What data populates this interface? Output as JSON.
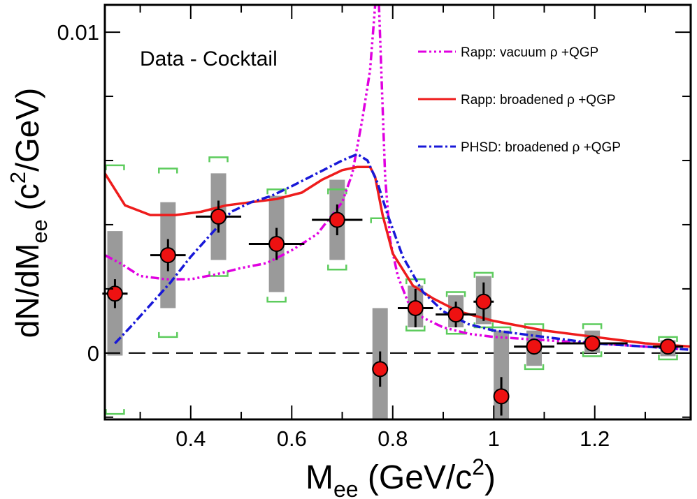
{
  "chart_data": {
    "type": "scatter",
    "title": "",
    "annotation": "Data - Cocktail",
    "xlabel": {
      "main": "M",
      "sub": "ee",
      "unit_open": " (GeV/c",
      "unit_sup": "2",
      "unit_close": ")"
    },
    "ylabel": {
      "main": "dN/dM",
      "sub": "ee",
      "unit_open": " (c",
      "unit_sup": "2",
      "unit_close": "/GeV)"
    },
    "xlim": [
      0.23,
      1.39
    ],
    "ylim": [
      -0.00207,
      0.01085
    ],
    "x_ticks": [
      {
        "value": 0.4,
        "label": "0.4"
      },
      {
        "value": 0.6,
        "label": "0.6"
      },
      {
        "value": 0.8,
        "label": "0.8"
      },
      {
        "value": 1.0,
        "label": "1"
      },
      {
        "value": 1.2,
        "label": "1.2"
      }
    ],
    "y_ticks": [
      {
        "value": 0,
        "label": "0"
      },
      {
        "value": 0.01,
        "label": "0.01"
      }
    ],
    "zero_line": true,
    "legend_position": "top-right",
    "colors": {
      "vacuum": "#e000e0",
      "broadened": "#ee1c1c",
      "phsd": "#1818d8",
      "marker": "#ee1111",
      "sys_box": "#9a9a9a",
      "bracket": "#5dcc5d"
    },
    "legend": [
      {
        "label": "Rapp: vacuum ρ +QGP",
        "series": "vacuum"
      },
      {
        "label": "Rapp: broadened ρ +QGP",
        "series": "broadened"
      },
      {
        "label": "PHSD: broadened ρ +QGP",
        "series": "phsd"
      }
    ],
    "series": [
      {
        "name": "Data",
        "points": [
          {
            "x": 0.25,
            "y": 0.00185,
            "ex": 0.025,
            "ey": 0.00045,
            "sys_lo": -8e-05,
            "sys_hi": 0.0038,
            "br_lo": -0.0019,
            "br_hi": 0.00585
          },
          {
            "x": 0.355,
            "y": 0.00305,
            "ex": 0.035,
            "ey": 0.0005,
            "sys_lo": 0.0014,
            "sys_hi": 0.0047,
            "br_lo": 0.0005,
            "br_hi": 0.00575
          },
          {
            "x": 0.455,
            "y": 0.00425,
            "ex": 0.045,
            "ey": 0.0005,
            "sys_lo": 0.0029,
            "sys_hi": 0.0056,
            "br_lo": 0.0024,
            "br_hi": 0.0061
          },
          {
            "x": 0.57,
            "y": 0.0034,
            "ex": 0.055,
            "ey": 0.0005,
            "sys_lo": 0.0019,
            "sys_hi": 0.0049,
            "br_lo": 0.0016,
            "br_hi": 0.0051
          },
          {
            "x": 0.69,
            "y": 0.00415,
            "ex": 0.05,
            "ey": 0.00048,
            "sys_lo": 0.0029,
            "sys_hi": 0.0054,
            "br_lo": 0.0026,
            "br_hi": 0.0051
          },
          {
            "x": 0.775,
            "y": -0.0005,
            "ex": 0.015,
            "ey": 0.00055,
            "sys_lo": -0.0021,
            "sys_hi": 0.0014,
            "br_lo": -0.0023,
            "br_hi": 0.0042
          },
          {
            "x": 0.845,
            "y": 0.0014,
            "ex": 0.035,
            "ey": 0.0006,
            "sys_lo": 0.0008,
            "sys_hi": 0.0021,
            "br_lo": 0.0007,
            "br_hi": 0.0023
          },
          {
            "x": 0.925,
            "y": 0.0012,
            "ex": 0.04,
            "ey": 0.0004,
            "sys_lo": 0.0008,
            "sys_hi": 0.0018,
            "br_lo": 0.0006,
            "br_hi": 0.0019
          },
          {
            "x": 0.98,
            "y": 0.0016,
            "ex": 0.02,
            "ey": 0.0006,
            "sys_lo": 0.0009,
            "sys_hi": 0.0024,
            "br_lo": 0.0008,
            "br_hi": 0.0025
          },
          {
            "x": 1.015,
            "y": -0.00135,
            "ex": 0.015,
            "ey": 0.0006,
            "sys_lo": -0.0021,
            "sys_hi": 0.0007,
            "br_lo": -0.0023,
            "br_hi": 0.0008
          },
          {
            "x": 1.08,
            "y": 0.0002,
            "ex": 0.04,
            "ey": 0.00025,
            "sys_lo": -0.0004,
            "sys_hi": 0.0007,
            "br_lo": -0.0005,
            "br_hi": 0.0009
          },
          {
            "x": 1.195,
            "y": 0.0003,
            "ex": 0.07,
            "ey": 0.00025,
            "sys_lo": 0.0,
            "sys_hi": 0.0007,
            "br_lo": -0.0001,
            "br_hi": 0.0009
          },
          {
            "x": 1.345,
            "y": 0.0002,
            "ex": 0.03,
            "ey": 0.0002,
            "sys_lo": -0.0001,
            "sys_hi": 0.0004,
            "br_lo": -0.0002,
            "br_hi": 0.0005
          }
        ]
      },
      {
        "name": "vacuum",
        "x": [
          0.23,
          0.26,
          0.3,
          0.35,
          0.4,
          0.45,
          0.5,
          0.55,
          0.6,
          0.65,
          0.7,
          0.72,
          0.74,
          0.755,
          0.765,
          0.772,
          0.778,
          0.785,
          0.795,
          0.81,
          0.83,
          0.86,
          0.9,
          0.95,
          1.0,
          1.1,
          1.2,
          1.3,
          1.39
        ],
        "y": [
          0.00305,
          0.0028,
          0.0024,
          0.0023,
          0.0023,
          0.00245,
          0.00265,
          0.0028,
          0.0032,
          0.0037,
          0.0047,
          0.0056,
          0.0073,
          0.0088,
          0.0108,
          0.0112,
          0.0085,
          0.0055,
          0.0035,
          0.0024,
          0.0016,
          0.0011,
          0.0008,
          0.0006,
          0.0005,
          0.0004,
          0.0003,
          0.0002,
          0.0001
        ]
      },
      {
        "name": "broadened",
        "x": [
          0.23,
          0.27,
          0.32,
          0.37,
          0.42,
          0.47,
          0.52,
          0.57,
          0.62,
          0.66,
          0.7,
          0.73,
          0.755,
          0.765,
          0.78,
          0.8,
          0.84,
          0.88,
          0.93,
          1.0,
          1.1,
          1.2,
          1.3,
          1.39
        ],
        "y": [
          0.0056,
          0.0046,
          0.0043,
          0.0043,
          0.0044,
          0.0046,
          0.0047,
          0.0048,
          0.005,
          0.0054,
          0.0057,
          0.0058,
          0.0058,
          0.0055,
          0.0043,
          0.0031,
          0.0021,
          0.0017,
          0.0013,
          0.001,
          0.0007,
          0.0005,
          0.0003,
          0.0002
        ]
      },
      {
        "name": "phsd",
        "x": [
          0.25,
          0.28,
          0.32,
          0.36,
          0.4,
          0.44,
          0.48,
          0.52,
          0.56,
          0.6,
          0.65,
          0.7,
          0.73,
          0.75,
          0.77,
          0.79,
          0.82,
          0.86,
          0.9,
          0.95,
          1.0,
          1.1,
          1.2,
          1.3,
          1.39
        ],
        "y": [
          0.0003,
          0.0008,
          0.0015,
          0.0022,
          0.003,
          0.0037,
          0.0044,
          0.0047,
          0.0049,
          0.0052,
          0.0056,
          0.006,
          0.0062,
          0.006,
          0.0053,
          0.0043,
          0.003,
          0.0019,
          0.0013,
          0.0009,
          0.0007,
          0.0005,
          0.0003,
          0.0002,
          0.0001
        ]
      }
    ]
  }
}
